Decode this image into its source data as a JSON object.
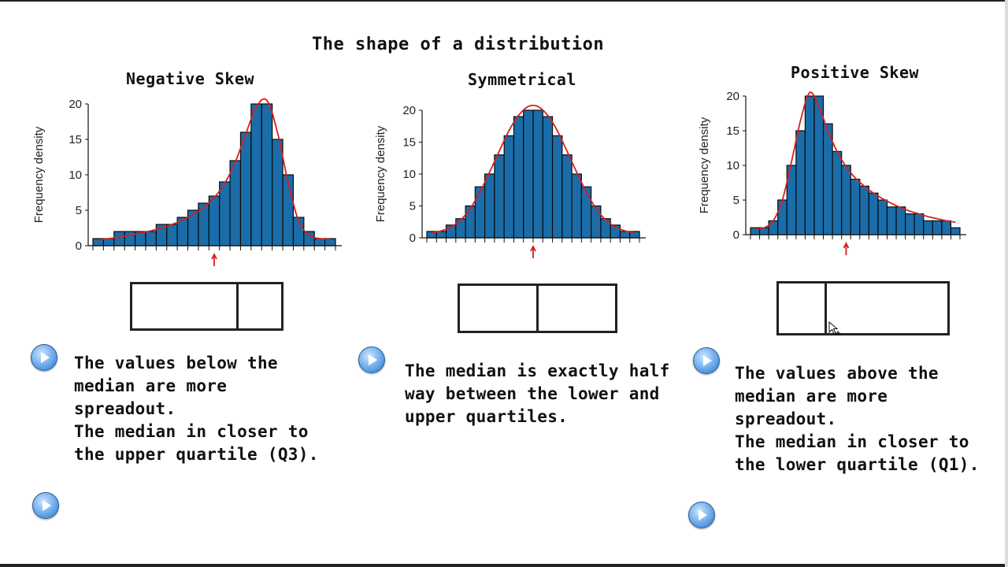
{
  "page_title": "The shape of a distribution",
  "colors": {
    "bar": "#1a6da8",
    "curve": "#d42020",
    "median_marker": "#d42020"
  },
  "panels": [
    {
      "title": "Negative Skew",
      "description": [
        "The values below the",
        "median are more",
        "spreadout.",
        "The median in closer to",
        "the upper quartile (Q3)."
      ]
    },
    {
      "title": "Symmetrical",
      "description": [
        "The median is exactly half",
        "way between the lower and",
        "upper quartiles."
      ]
    },
    {
      "title": "Positive Skew",
      "description": [
        "The values above the",
        "median are more",
        "spreadout.",
        "The median in closer to",
        "the lower quartile (Q1)."
      ]
    }
  ],
  "chart_data": [
    {
      "type": "bar",
      "title": "Negative Skew",
      "ylabel": "Frequency density",
      "ylim": [
        0,
        20
      ],
      "yticks": [
        0,
        5,
        10,
        15,
        20
      ],
      "values": [
        1,
        1,
        2,
        2,
        2,
        2,
        3,
        3,
        4,
        5,
        6,
        7,
        9,
        12,
        16,
        20,
        20,
        15,
        10,
        4,
        2,
        1,
        1
      ],
      "curve": [
        0.8,
        1.0,
        1.2,
        1.5,
        1.8,
        2.1,
        2.5,
        3.0,
        3.6,
        4.4,
        5.4,
        6.8,
        8.8,
        11.8,
        15.8,
        19.6,
        20.5,
        16.0,
        9.0,
        3.5,
        1.5,
        1.0,
        0.9
      ],
      "median_marker_index": 11.5
    },
    {
      "type": "bar",
      "title": "Symmetrical",
      "ylabel": "Frequency density",
      "ylim": [
        0,
        20
      ],
      "yticks": [
        0,
        5,
        10,
        15,
        20
      ],
      "values": [
        1,
        1,
        2,
        3,
        5,
        8,
        10,
        13,
        16,
        19,
        20,
        20,
        19,
        16,
        13,
        10,
        8,
        5,
        3,
        2,
        1,
        1
      ],
      "curve": [
        0.8,
        1.1,
        1.7,
        2.8,
        4.6,
        7.2,
        10.3,
        13.6,
        16.8,
        19.2,
        20.6,
        20.6,
        19.2,
        16.8,
        13.6,
        10.3,
        7.2,
        4.6,
        2.8,
        1.7,
        1.1,
        0.8
      ],
      "median_marker_index": 11
    },
    {
      "type": "bar",
      "title": "Positive Skew",
      "ylabel": "Frequency density",
      "ylim": [
        0,
        20
      ],
      "yticks": [
        0,
        5,
        10,
        15,
        20
      ],
      "values": [
        1,
        1,
        2,
        5,
        10,
        15,
        20,
        20,
        16,
        12,
        10,
        8,
        7,
        6,
        5,
        4,
        4,
        3,
        3,
        2,
        2,
        2,
        1
      ],
      "curve": [
        0.8,
        1.0,
        2.0,
        5.0,
        10.5,
        16.5,
        20.5,
        18.5,
        15.0,
        12.0,
        9.8,
        8.2,
        7.0,
        6.0,
        5.2,
        4.5,
        3.9,
        3.4,
        3.0,
        2.6,
        2.3,
        2.0,
        1.8
      ],
      "median_marker_index": 10.5
    }
  ],
  "boxplots": [
    {
      "lower_fraction": 0.0,
      "median_fraction": 0.71,
      "upper_fraction": 1.0
    },
    {
      "lower_fraction": 0.0,
      "median_fraction": 0.5,
      "upper_fraction": 1.0
    },
    {
      "lower_fraction": 0.0,
      "median_fraction": 0.28,
      "upper_fraction": 1.0
    }
  ],
  "icons": {
    "play_button": "play-circle-icon",
    "cursor": "move-cursor-icon"
  }
}
